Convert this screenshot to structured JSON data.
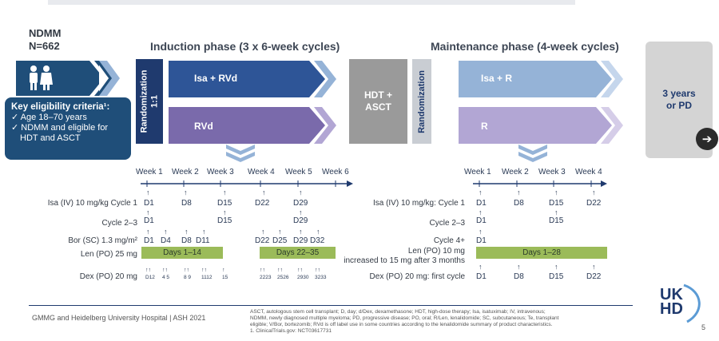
{
  "header": {
    "population_title": "NDMM",
    "population_n": "N=662",
    "induction_title": "Induction phase (3 x 6-week cycles)",
    "maintenance_title": "Maintenance phase (4-week cycles)"
  },
  "eligibility": {
    "title": "Key eligibility criteria¹:",
    "item1": "Age 18–70 years",
    "item2": "NDMM and eligible for",
    "item3": "HDT and ASCT"
  },
  "randomization1": {
    "line1": "Randomization",
    "line2": "1:1"
  },
  "randomization2": {
    "label": "Randomization"
  },
  "arms": {
    "isa_rvd": "Isa + RVd",
    "rvd": "RVd",
    "hdt": "HDT +",
    "asct": "ASCT",
    "isa_r": "Isa + R",
    "r": "R",
    "years": "3 years",
    "or_pd": "or PD"
  },
  "induction_weeks": [
    "Week 1",
    "Week 2",
    "Week 3",
    "Week 4",
    "Week 5",
    "Week 6"
  ],
  "maintenance_weeks": [
    "Week 1",
    "Week 2",
    "Week 3",
    "Week 4"
  ],
  "induction_rows": {
    "isa_c1_label": "Isa (IV) 10 mg/kg Cycle 1",
    "isa_c1_days": [
      "D1",
      "D8",
      "D15",
      "D22",
      "D29"
    ],
    "isa_c23_label": "Cycle 2–3",
    "isa_c23_days": [
      "D1",
      "D15",
      "D29"
    ],
    "bor_label": "Bor (SC) 1.3 mg/m²",
    "bor_days": [
      "D1",
      "D4",
      "D8",
      "D11",
      "D22",
      "D25",
      "D29",
      "D32"
    ],
    "len_label": "Len (PO) 25 mg",
    "len_bar1": "Days 1–14",
    "len_bar2": "Days 22–35",
    "dex_label": "Dex (PO) 20 mg",
    "dex_days": [
      "D12",
      "4 5",
      "8 9",
      "1112",
      "15",
      "2223",
      "2526",
      "2930",
      "3233"
    ]
  },
  "maintenance_rows": {
    "isa_c1_label": "Isa (IV) 10 mg/kg: Cycle 1",
    "isa_c1_days": [
      "D1",
      "D8",
      "D15",
      "D22"
    ],
    "isa_c23_label": "Cycle 2–3",
    "isa_c23_days": [
      "D1",
      "D15"
    ],
    "isa_c4_label": "Cycle 4+",
    "isa_c4_days": [
      "D1"
    ],
    "len_label1": "Len (PO) 10 mg",
    "len_label2": "increased to 15 mg after 3 months",
    "len_bar": "Days 1–28",
    "dex_label": "Dex (PO) 20 mg: first cycle",
    "dex_days": [
      "D1",
      "D8",
      "D15",
      "D22"
    ]
  },
  "footer": {
    "source": "GMMG and Heidelberg University Hospital | ASH 2021",
    "abbrev1": "ASCT, autologous stem cell transplant; D, day; d/Dex, dexamethasone; HDT, high-dose therapy; Isa, isatuximab; IV, intravenous;",
    "abbrev2": "NDMM, newly diagnosed multiple myeloma; PD, progressive disease; PO, oral; R/Len, lenalidomide; SC, subcutaneous; Te, transplant",
    "abbrev3": "eligible; V/Bor, bortezomib; RVd is off label use in some countries according to the lenalidomide summary of product characteristics.",
    "abbrev4": "1. ClinicalTrials.gov: NCT03617731",
    "logo_line1": "UK",
    "logo_line2": "HD",
    "page": "5"
  },
  "colors": {
    "navy": "#1f3a6e",
    "blue_arrow": "#2e5597",
    "purple_arrow": "#7a6aab",
    "light_blue": "#95b3d7",
    "light_purple": "#b2a6d4",
    "len_green": "#9bbb59"
  }
}
